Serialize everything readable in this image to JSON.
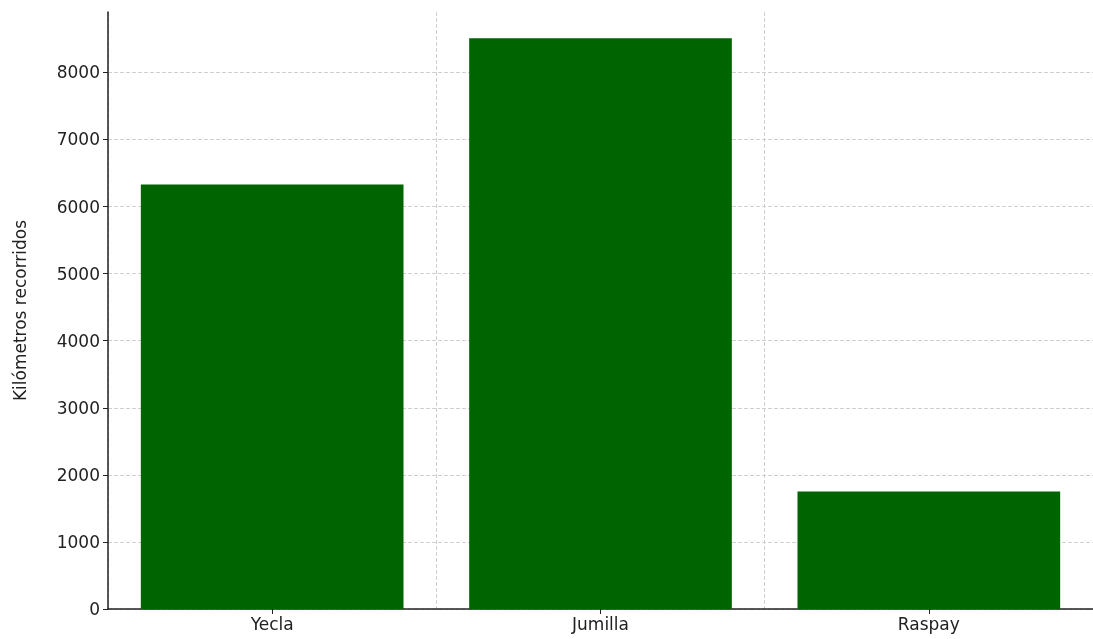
{
  "chart_data": {
    "type": "bar",
    "ylabel": "Kilómetros recorridos",
    "categories": [
      "Yecla",
      "Jumilla",
      "Raspay"
    ],
    "values": [
      6330,
      8510,
      1750
    ],
    "color": "#006400",
    "ylim": [
      0,
      8900
    ],
    "yticks": [
      0,
      1000,
      2000,
      3000,
      4000,
      5000,
      6000,
      7000,
      8000
    ],
    "grid": true
  }
}
